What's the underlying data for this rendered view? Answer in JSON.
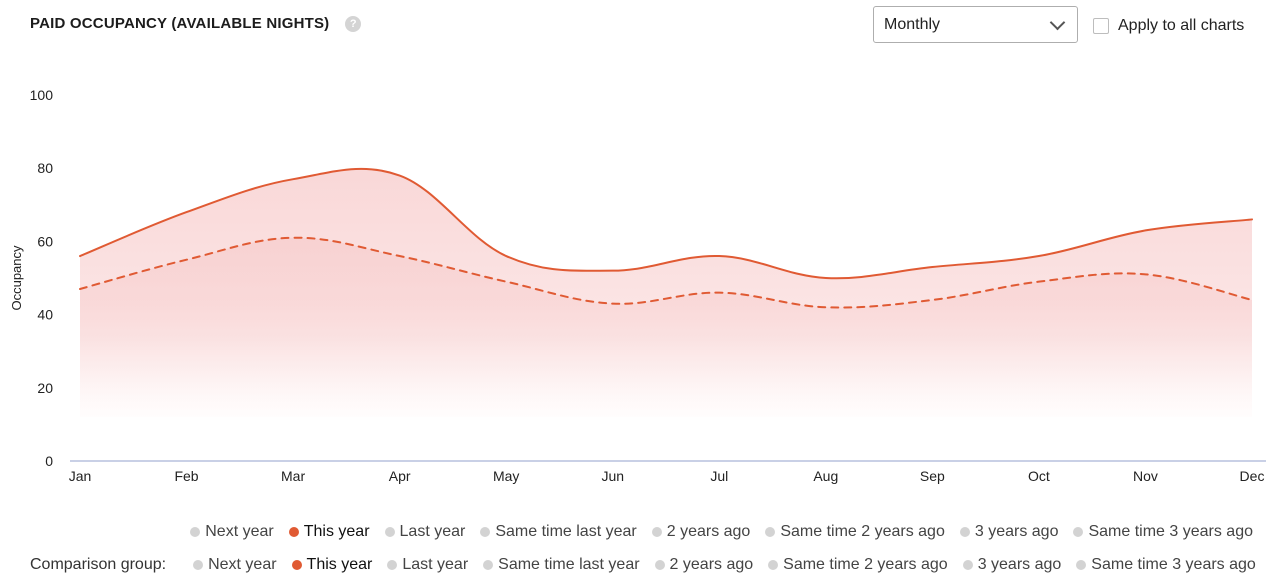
{
  "header": {
    "title": "PAID OCCUPANCY (AVAILABLE NIGHTS)",
    "help_icon": "question-circle-icon"
  },
  "controls": {
    "period_value": "Monthly",
    "period_icon": "chevron-down-icon",
    "apply_all_label": "Apply to all charts",
    "apply_all_checked": false
  },
  "legend": {
    "items": [
      {
        "label": "Next year",
        "active": false
      },
      {
        "label": "This year",
        "active": true
      },
      {
        "label": "Last year",
        "active": false
      },
      {
        "label": "Same time last year",
        "active": false
      },
      {
        "label": "2 years ago",
        "active": false
      },
      {
        "label": "Same time 2 years ago",
        "active": false
      },
      {
        "label": "3 years ago",
        "active": false
      },
      {
        "label": "Same time 3 years ago",
        "active": false
      }
    ],
    "comparison_label": "Comparison group:",
    "comparison_items": [
      {
        "label": "Next year",
        "active": false
      },
      {
        "label": "This year",
        "active": true
      },
      {
        "label": "Last year",
        "active": false
      },
      {
        "label": "Same time last year",
        "active": false
      },
      {
        "label": "2 years ago",
        "active": false
      },
      {
        "label": "Same time 2 years ago",
        "active": false
      },
      {
        "label": "3 years ago",
        "active": false
      },
      {
        "label": "Same time 3 years ago",
        "active": false
      }
    ]
  },
  "colors": {
    "accent": "#e05a33",
    "fill": "#f8c9c9",
    "axis": "#a9b3d6",
    "inactive_dot": "#d3d3d3"
  },
  "chart_data": {
    "type": "area",
    "title": "PAID OCCUPANCY (AVAILABLE NIGHTS)",
    "xlabel": "",
    "ylabel": "Occupancy",
    "categories": [
      "Jan",
      "Feb",
      "Mar",
      "Apr",
      "May",
      "Jun",
      "Jul",
      "Aug",
      "Sep",
      "Oct",
      "Nov",
      "Dec"
    ],
    "ylim": [
      0,
      100
    ],
    "yticks": [
      0,
      20,
      40,
      60,
      80,
      100
    ],
    "grid": false,
    "series": [
      {
        "name": "This year",
        "style": "solid",
        "values": [
          56,
          68,
          77,
          78,
          56,
          52,
          56,
          50,
          53,
          56,
          63,
          66
        ]
      },
      {
        "name": "Comparison group: This year",
        "style": "dashed",
        "values": [
          47,
          55,
          61,
          56,
          49,
          43,
          46,
          42,
          44,
          49,
          51,
          44
        ]
      }
    ]
  }
}
